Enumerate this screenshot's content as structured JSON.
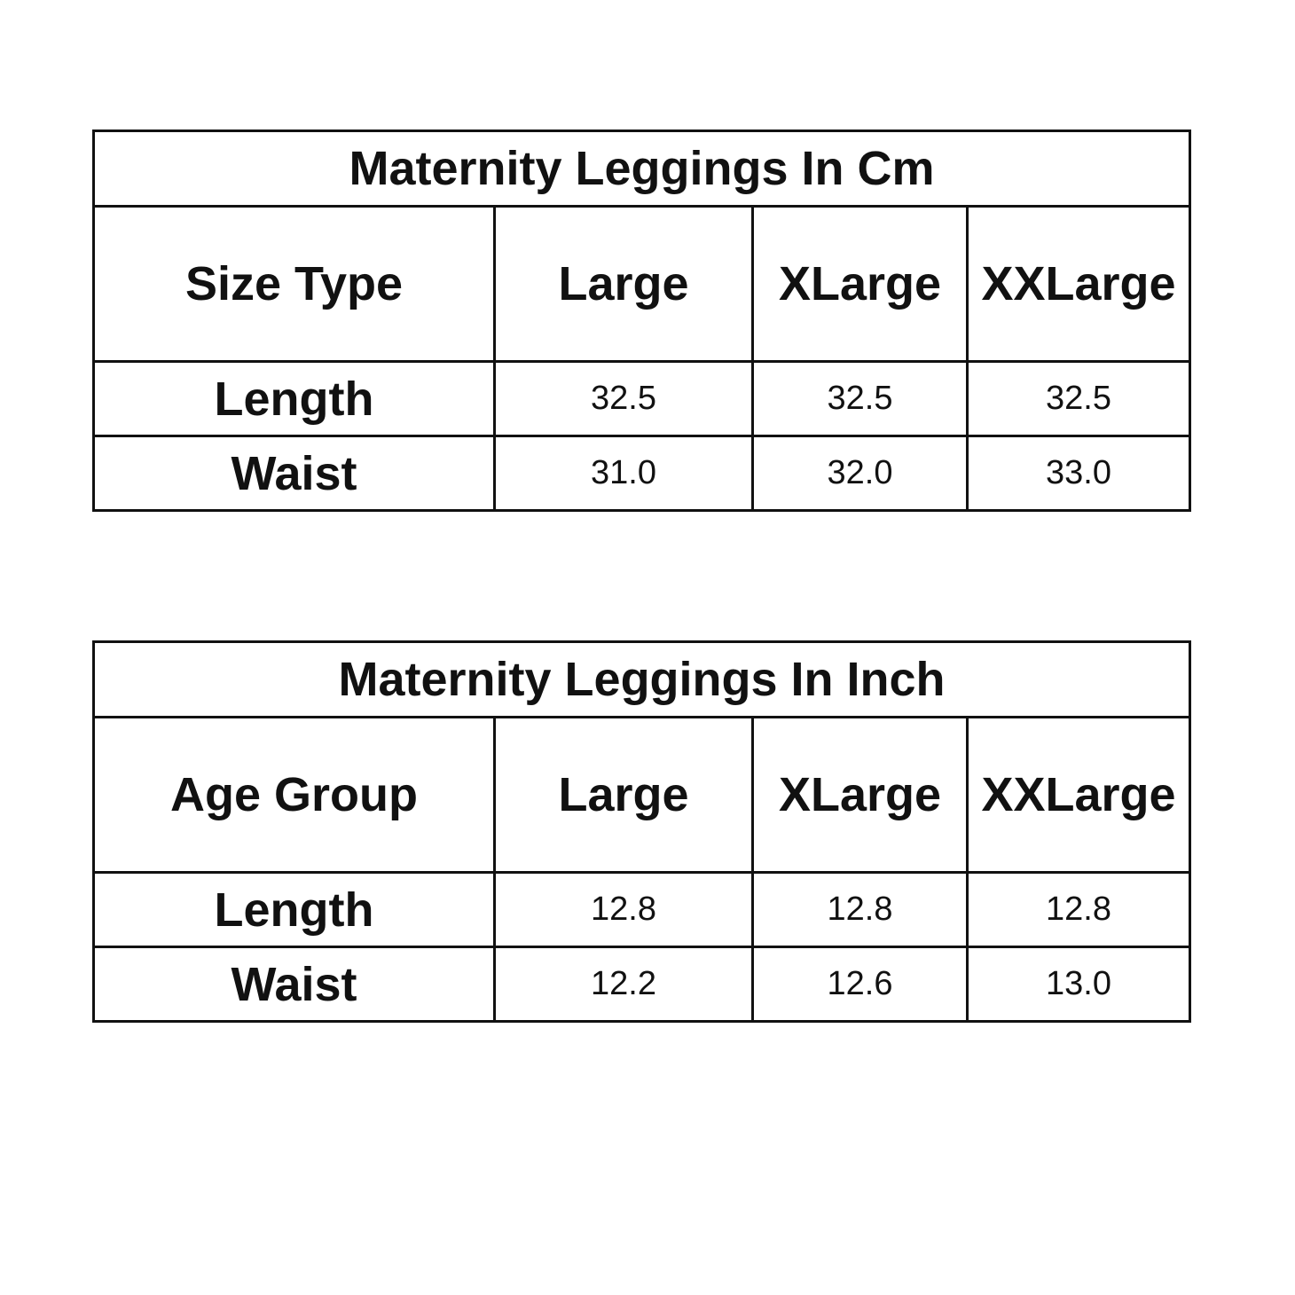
{
  "tables": [
    {
      "title": "Maternity Leggings In Cm",
      "header": [
        "Size Type",
        "Large",
        "XLarge",
        "XXLarge"
      ],
      "rows": [
        [
          "Length",
          "32.5",
          "32.5",
          "32.5"
        ],
        [
          "Waist",
          "31.0",
          "32.0",
          "33.0"
        ]
      ]
    },
    {
      "title": "Maternity Leggings In Inch",
      "header": [
        "Age Group",
        "Large",
        "XLarge",
        "XXLarge"
      ],
      "rows": [
        [
          "Length",
          "12.8",
          "12.8",
          "12.8"
        ],
        [
          "Waist",
          "12.2",
          "12.6",
          "13.0"
        ]
      ]
    }
  ]
}
